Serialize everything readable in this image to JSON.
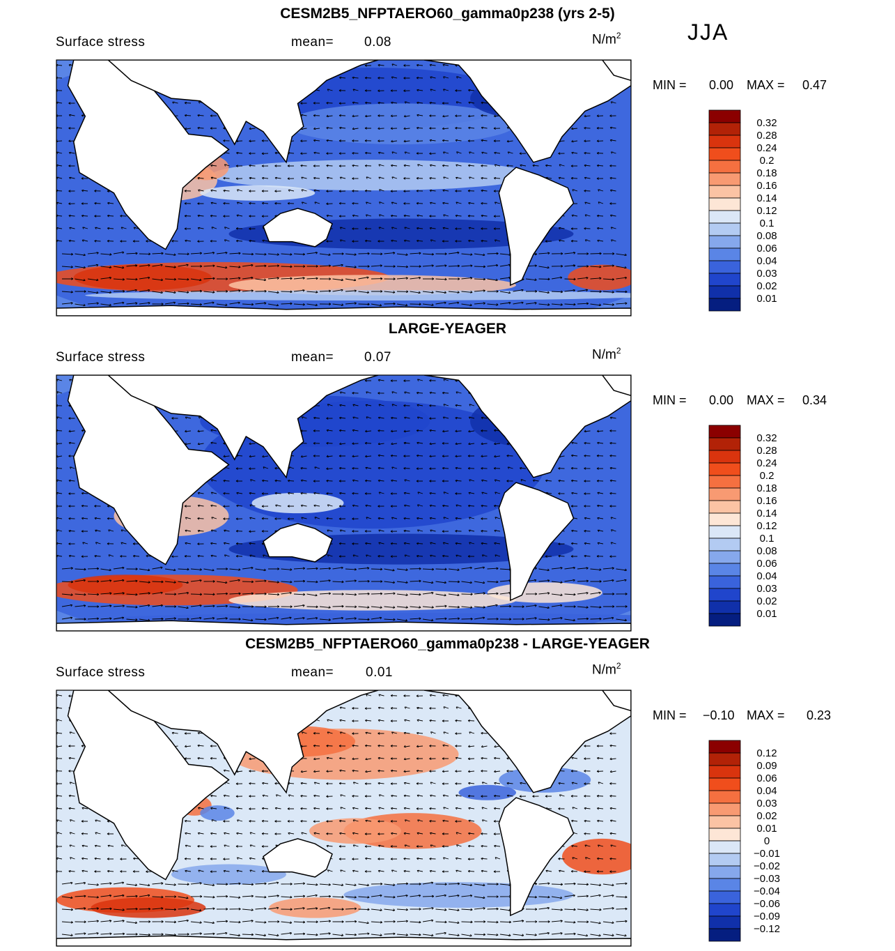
{
  "season": "JJA",
  "units_base": "N/m",
  "units_exp": "2",
  "land_color": "#ffffff",
  "panels": [
    {
      "title": "CESM2B5_NFPTAERO60_gamma0p238 (yrs 2-5)",
      "subtitle": "Surface stress",
      "mean_label": "mean=",
      "mean_value": "0.08",
      "min_label": "MIN =",
      "min_value": "0.00",
      "max_label": "MAX =",
      "max_value": "0.47",
      "colorbar_labels": [
        "0.32",
        "0.28",
        "0.24",
        "0.2",
        "0.18",
        "0.16",
        "0.14",
        "0.12",
        "0.1",
        "0.08",
        "0.06",
        "0.04",
        "0.03",
        "0.02",
        "0.01"
      ],
      "colorbar_colors": [
        "#8b0000",
        "#b22207",
        "#d9340e",
        "#f04e1c",
        "#f57040",
        "#f89a72",
        "#fbc3a4",
        "#fde6d6",
        "#dbe7f7",
        "#b3cbf2",
        "#86a8ec",
        "#5a85e6",
        "#3a63dc",
        "#2045cc",
        "#1030aa",
        "#051e80"
      ]
    },
    {
      "title": "LARGE-YEAGER",
      "subtitle": "Surface stress",
      "mean_label": "mean=",
      "mean_value": "0.07",
      "min_label": "MIN =",
      "min_value": "0.00",
      "max_label": "MAX =",
      "max_value": "0.34",
      "colorbar_labels": [
        "0.32",
        "0.28",
        "0.24",
        "0.2",
        "0.18",
        "0.16",
        "0.14",
        "0.12",
        "0.1",
        "0.08",
        "0.06",
        "0.04",
        "0.03",
        "0.02",
        "0.01"
      ],
      "colorbar_colors": [
        "#8b0000",
        "#b22207",
        "#d9340e",
        "#f04e1c",
        "#f57040",
        "#f89a72",
        "#fbc3a4",
        "#fde6d6",
        "#dbe7f7",
        "#b3cbf2",
        "#86a8ec",
        "#5a85e6",
        "#3a63dc",
        "#2045cc",
        "#1030aa",
        "#051e80"
      ]
    },
    {
      "title": "CESM2B5_NFPTAERO60_gamma0p238 - LARGE-YEAGER",
      "subtitle": "Surface stress",
      "mean_label": "mean=",
      "mean_value": "0.01",
      "min_label": "MIN =",
      "min_value": "−0.10",
      "max_label": "MAX =",
      "max_value": "0.23",
      "colorbar_labels": [
        "0.12",
        "0.09",
        "0.06",
        "0.04",
        "0.03",
        "0.02",
        "0.01",
        "0",
        "−0.01",
        "−0.02",
        "−0.03",
        "−0.04",
        "−0.06",
        "−0.09",
        "−0.12"
      ],
      "colorbar_colors": [
        "#8b0000",
        "#b22207",
        "#d9340e",
        "#f04e1c",
        "#f57040",
        "#f89a72",
        "#fbc3a4",
        "#fde6d6",
        "#dbe7f7",
        "#b3cbf2",
        "#86a8ec",
        "#5a85e6",
        "#3a63dc",
        "#2045cc",
        "#1030aa",
        "#051e80"
      ]
    }
  ],
  "chart_data": [
    {
      "type": "heatmap",
      "title": "CESM2B5_NFPTAERO60_gamma0p238 (yrs 2-5)",
      "variable": "Surface stress",
      "units": "N/m2",
      "season": "JJA",
      "mean": 0.08,
      "min": 0.0,
      "max": 0.47,
      "levels": [
        0.01,
        0.02,
        0.03,
        0.04,
        0.06,
        0.08,
        0.1,
        0.12,
        0.14,
        0.16,
        0.18,
        0.2,
        0.24,
        0.28,
        0.32
      ],
      "overlay": "wind stress vectors"
    },
    {
      "type": "heatmap",
      "title": "LARGE-YEAGER",
      "variable": "Surface stress",
      "units": "N/m2",
      "season": "JJA",
      "mean": 0.07,
      "min": 0.0,
      "max": 0.34,
      "levels": [
        0.01,
        0.02,
        0.03,
        0.04,
        0.06,
        0.08,
        0.1,
        0.12,
        0.14,
        0.16,
        0.18,
        0.2,
        0.24,
        0.28,
        0.32
      ],
      "overlay": "wind stress vectors"
    },
    {
      "type": "heatmap",
      "title": "CESM2B5_NFPTAERO60_gamma0p238 - LARGE-YEAGER",
      "variable": "Surface stress",
      "units": "N/m2",
      "season": "JJA",
      "mean": 0.01,
      "min": -0.1,
      "max": 0.23,
      "levels": [
        -0.12,
        -0.09,
        -0.06,
        -0.04,
        -0.03,
        -0.02,
        -0.01,
        0,
        0.01,
        0.02,
        0.03,
        0.04,
        0.06,
        0.09,
        0.12
      ],
      "overlay": "wind stress vector differences"
    }
  ]
}
